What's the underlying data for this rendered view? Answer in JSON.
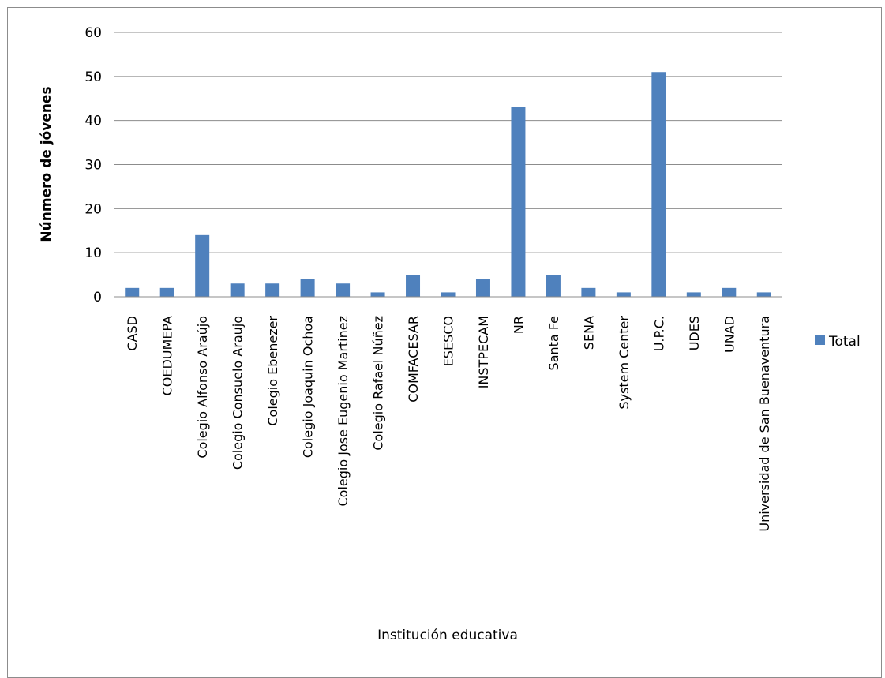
{
  "chart_data": {
    "type": "bar",
    "title": "",
    "xlabel": "Institución educativa",
    "ylabel": "Núnmero de jóvenes",
    "ylim": [
      0,
      60
    ],
    "yticks": [
      0,
      10,
      20,
      30,
      40,
      50,
      60
    ],
    "grid": true,
    "legend_position": "right",
    "categories": [
      "CASD",
      "COEDUMEPA",
      "Colegio Alfonso Araújo",
      "Colegio Consuelo Araujo",
      "Colegio Ebenezer",
      "Colegio Joaquin Ochoa",
      "Colegio Jose Eugenio Martinez",
      "Colegio Rafael Núñez",
      "COMFACESAR",
      "ESESCO",
      "INSTPECAM",
      "NR",
      "Santa Fe",
      "SENA",
      "System Center",
      "U.P.C.",
      "UDES",
      "UNAD",
      "Universidad de San Buenaventura"
    ],
    "series": [
      {
        "name": "Total",
        "color": "#4f81bd",
        "values": [
          2,
          2,
          14,
          3,
          3,
          4,
          3,
          1,
          5,
          1,
          4,
          43,
          5,
          2,
          1,
          51,
          1,
          2,
          1
        ]
      }
    ]
  }
}
